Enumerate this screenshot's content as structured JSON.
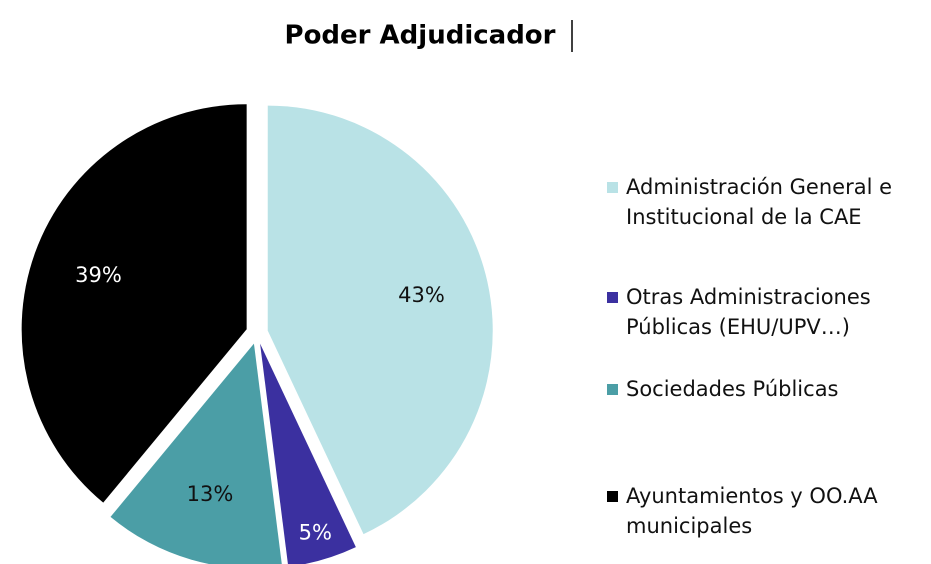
{
  "chart_data": {
    "type": "pie",
    "title": "Poder Adjudicador",
    "categories": [
      "Administración General e Institucional de la CAE",
      "Otras Administraciones Públicas (EHU/UPV…)",
      "Sociedades Públicas",
      "Ayuntamientos y OO.AA municipales"
    ],
    "values": [
      43,
      5,
      13,
      39
    ],
    "value_labels": [
      "43%",
      "5%",
      "13%",
      "39%"
    ],
    "colors": [
      "#b9e2e6",
      "#3b30a0",
      "#4b9ea6",
      "#000000"
    ],
    "legend": "right"
  }
}
